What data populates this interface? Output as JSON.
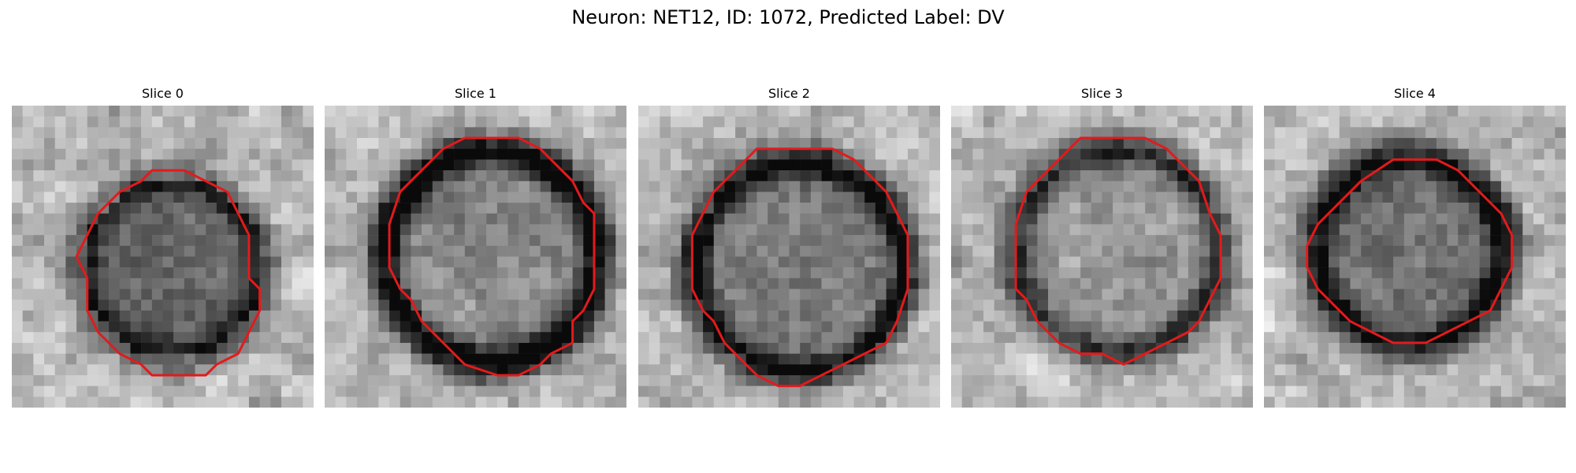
{
  "figure": {
    "title": "Neuron: NET12, ID: 1072, Predicted Label: DV",
    "contour_color": "#e31a1c",
    "colormap": "gray",
    "grid_size": 28
  },
  "panels": [
    {
      "label": "Slice 0"
    },
    {
      "label": "Slice 1"
    },
    {
      "label": "Slice 2"
    },
    {
      "label": "Slice 3"
    },
    {
      "label": "Slice 4"
    }
  ]
}
